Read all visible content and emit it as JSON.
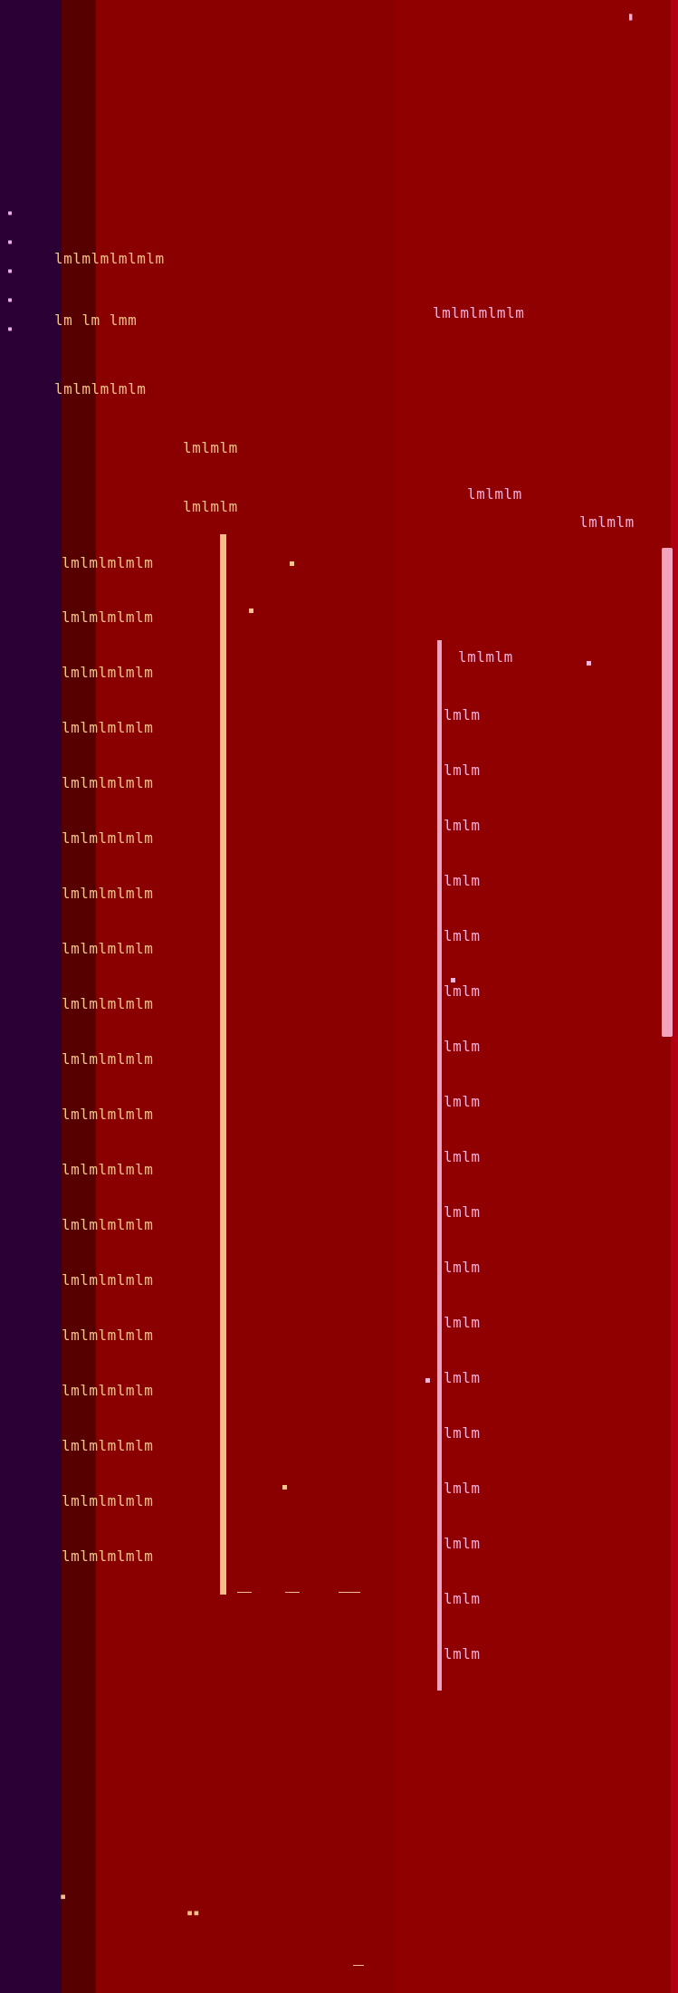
{
  "header": {
    "title_lines": [
      "lmlmlmlmlmlm",
      "lm lm lmm",
      "lmlmlmlmlm"
    ],
    "submenu_lines": [
      "lmlmlm",
      "lmlmlm"
    ]
  },
  "sidebar": {
    "items": [
      {
        "label": "lmlmlmlmlm"
      },
      {
        "label": "lmlmlmlmlm"
      },
      {
        "label": "lmlmlmlmlm"
      },
      {
        "label": "lmlmlmlmlm"
      },
      {
        "label": "lmlmlmlmlm"
      },
      {
        "label": "lmlmlmlmlm"
      },
      {
        "label": "lmlmlmlmlm"
      },
      {
        "label": "lmlmlmlmlm"
      },
      {
        "label": "lmlmlmlmlm"
      },
      {
        "label": "lmlmlmlmlm"
      },
      {
        "label": "lmlmlmlmlm"
      },
      {
        "label": "lmlmlmlmlm"
      },
      {
        "label": "lmlmlmlmlm"
      },
      {
        "label": "lmlmlmlmlm"
      },
      {
        "label": "lmlmlmlmlm"
      },
      {
        "label": "lmlmlmlmlm"
      },
      {
        "label": "lmlmlmlmlm"
      },
      {
        "label": "lmlmlmlmlm"
      },
      {
        "label": "lmlmlmlmlm"
      }
    ]
  },
  "right_panel": {
    "header_lines": [
      "lmlmlmlmlm",
      "lmlmlm",
      "lmlmlm"
    ],
    "field_label": "lmlmlm",
    "tree_items": [
      "lmlm",
      "lmlm",
      "lmlm",
      "lmlm",
      "lmlm",
      "lmlm",
      "lmlm",
      "lmlm",
      "lmlm",
      "lmlm",
      "lmlm",
      "lmlm",
      "lmlm",
      "lmlm",
      "lmlm",
      "lmlm",
      "lmlm",
      "lmlm"
    ]
  },
  "icons": {
    "left_markers": "▪",
    "tree_markers": "▫",
    "colors": {
      "background": "#8f0000",
      "left_strip": "#2b0035",
      "gutter": "#560000",
      "text_amber": "#f3c089",
      "text_pink": "#f8b0d8",
      "accent_bar": "#f4bf84"
    }
  }
}
